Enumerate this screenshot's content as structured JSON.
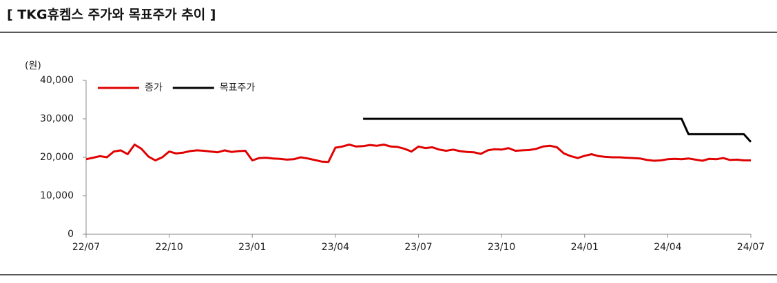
{
  "chart_data": {
    "type": "line",
    "title": "[ TKG휴켐스 주가와 목표주가 추이 ]",
    "y_label": "(원)",
    "categories": [
      "22/07",
      null,
      null,
      null,
      null,
      null,
      null,
      null,
      null,
      null,
      null,
      null,
      "22/10",
      null,
      null,
      null,
      null,
      null,
      null,
      null,
      null,
      null,
      null,
      null,
      "23/01",
      null,
      null,
      null,
      null,
      null,
      null,
      null,
      null,
      null,
      null,
      null,
      "23/04",
      null,
      null,
      null,
      null,
      null,
      null,
      null,
      null,
      null,
      null,
      null,
      "23/07",
      null,
      null,
      null,
      null,
      null,
      null,
      null,
      null,
      null,
      null,
      null,
      "23/10",
      null,
      null,
      null,
      null,
      null,
      null,
      null,
      null,
      null,
      null,
      null,
      "24/01",
      null,
      null,
      null,
      null,
      null,
      null,
      null,
      null,
      null,
      null,
      null,
      "24/04",
      null,
      null,
      null,
      null,
      null,
      null,
      null,
      null,
      null,
      null,
      null,
      "24/07"
    ],
    "series": [
      {
        "name": "종가",
        "color": "#e00000",
        "values": [
          19500,
          19900,
          20300,
          20000,
          21500,
          21800,
          20800,
          23300,
          22200,
          20200,
          19200,
          20000,
          21500,
          21000,
          21200,
          21600,
          21800,
          21700,
          21500,
          21300,
          21800,
          21400,
          21600,
          21700,
          19200,
          19800,
          19900,
          19700,
          19600,
          19400,
          19500,
          20000,
          19700,
          19300,
          18900,
          18800,
          22500,
          22800,
          23300,
          22800,
          22900,
          23200,
          23000,
          23300,
          22800,
          22700,
          22200,
          21500,
          22800,
          22400,
          22600,
          22000,
          21700,
          22000,
          21600,
          21400,
          21300,
          20900,
          21800,
          22100,
          22000,
          22400,
          21700,
          21800,
          21900,
          22200,
          22800,
          23000,
          22600,
          21000,
          20300,
          19800,
          20400,
          20800,
          20300,
          20100,
          20000,
          20000,
          19900,
          19800,
          19700,
          19300,
          19100,
          19200,
          19500,
          19600,
          19500,
          19700,
          19400,
          19100,
          19600,
          19500,
          19800,
          19300,
          19400,
          19200,
          19200
        ]
      },
      {
        "name": "목표주가",
        "color": "#000000",
        "values": [
          null,
          null,
          null,
          null,
          null,
          null,
          null,
          null,
          null,
          null,
          null,
          null,
          null,
          null,
          null,
          null,
          null,
          null,
          null,
          null,
          null,
          null,
          null,
          null,
          null,
          null,
          null,
          null,
          null,
          null,
          null,
          null,
          null,
          null,
          null,
          null,
          null,
          null,
          null,
          null,
          30000,
          30000,
          30000,
          30000,
          30000,
          30000,
          30000,
          30000,
          30000,
          30000,
          30000,
          30000,
          30000,
          30000,
          30000,
          30000,
          30000,
          30000,
          30000,
          30000,
          30000,
          30000,
          30000,
          30000,
          30000,
          30000,
          30000,
          30000,
          30000,
          30000,
          30000,
          30000,
          30000,
          30000,
          30000,
          30000,
          30000,
          30000,
          30000,
          30000,
          30000,
          30000,
          30000,
          30000,
          30000,
          30000,
          30000,
          26000,
          26000,
          26000,
          26000,
          26000,
          26000,
          26000,
          26000,
          26000,
          24000
        ]
      }
    ],
    "ylim": [
      0,
      40000
    ],
    "yticks": [
      0,
      {
        "value": 10000,
        "label": "10,000"
      },
      {
        "value": 20000,
        "label": "20,000"
      },
      {
        "value": 30000,
        "label": "30,000"
      },
      {
        "value": 40000,
        "label": "40,000"
      }
    ],
    "grid": false,
    "legend": "top-left"
  }
}
